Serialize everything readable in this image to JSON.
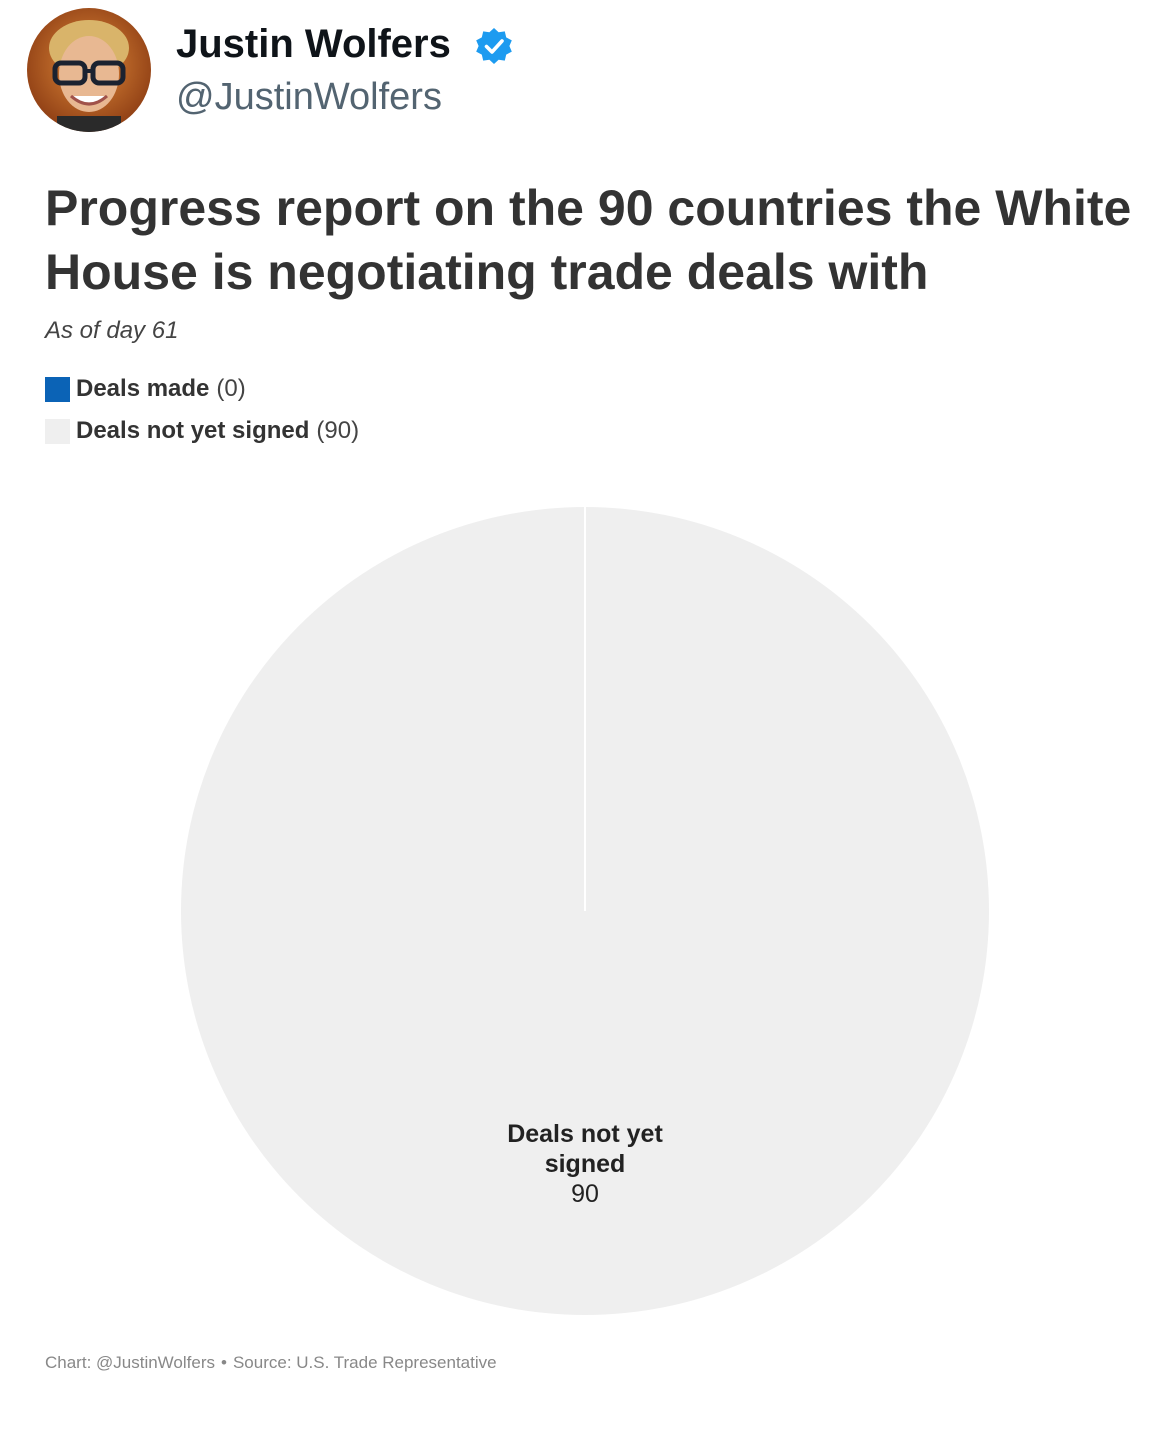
{
  "tweet": {
    "author_name": "Justin Wolfers",
    "author_handle": "@JustinWolfers",
    "verified": true,
    "avatar_icon": "avatar-photo"
  },
  "chart_data": {
    "type": "pie",
    "title": "Progress report on the 90 countries the White House is negotiating trade deals with",
    "subtitle": "As of day 61",
    "legend": [
      {
        "label": "Deals made",
        "count_text": "(0)",
        "color": "#0b63b6"
      },
      {
        "label": "Deals not yet signed",
        "count_text": "(90)",
        "color": "#efefef"
      }
    ],
    "slices": [
      {
        "name": "Deals made",
        "value": 0,
        "color": "#0b63b6"
      },
      {
        "name": "Deals not yet signed",
        "value": 90,
        "color": "#efefef"
      }
    ],
    "data_label": {
      "line1": "Deals not yet",
      "line2": "signed",
      "value": "90"
    },
    "legend_position": "top-left"
  },
  "footer": {
    "chart_credit": "Chart: @JustinWolfers",
    "separator": "•",
    "source": "Source: U.S. Trade Representative"
  }
}
